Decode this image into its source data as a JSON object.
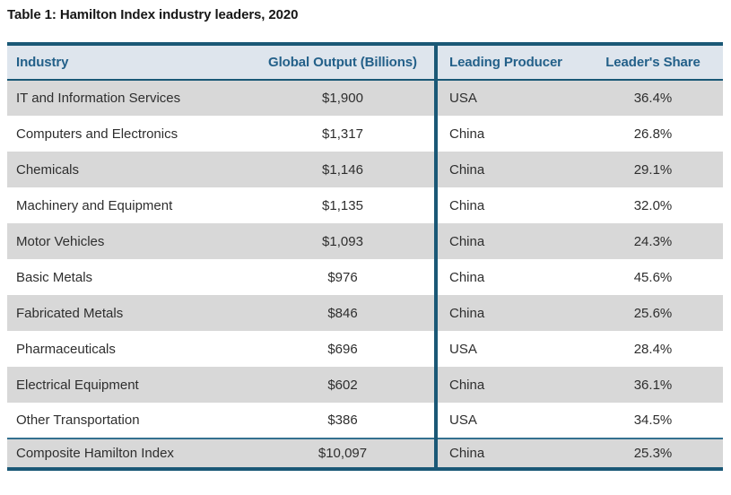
{
  "title": "Table 1: Hamilton Index industry leaders, 2020",
  "table": {
    "headers": {
      "industry": "Industry",
      "output": "Global Output (Billions)",
      "producer": "Leading Producer",
      "share": "Leader's Share"
    },
    "rows": [
      {
        "industry": "IT and Information Services",
        "output": "$1,900",
        "producer": "USA",
        "share": "36.4%"
      },
      {
        "industry": "Computers and Electronics",
        "output": "$1,317",
        "producer": "China",
        "share": "26.8%"
      },
      {
        "industry": "Chemicals",
        "output": "$1,146",
        "producer": "China",
        "share": "29.1%"
      },
      {
        "industry": "Machinery and Equipment",
        "output": "$1,135",
        "producer": "China",
        "share": "32.0%"
      },
      {
        "industry": "Motor Vehicles",
        "output": "$1,093",
        "producer": "China",
        "share": "24.3%"
      },
      {
        "industry": "Basic Metals",
        "output": "$976",
        "producer": "China",
        "share": "45.6%"
      },
      {
        "industry": "Fabricated Metals",
        "output": "$846",
        "producer": "China",
        "share": "25.6%"
      },
      {
        "industry": "Pharmaceuticals",
        "output": "$696",
        "producer": "USA",
        "share": "28.4%"
      },
      {
        "industry": "Electrical Equipment",
        "output": "$602",
        "producer": "China",
        "share": "36.1%"
      },
      {
        "industry": "Other Transportation",
        "output": "$386",
        "producer": "USA",
        "share": "34.5%"
      }
    ],
    "composite": {
      "industry": "Composite Hamilton Index",
      "output": "$10,097",
      "producer": "China",
      "share": "25.3%"
    }
  },
  "colors": {
    "border_teal": "#1a5876",
    "header_bg": "#dee5ed",
    "header_text": "#236089",
    "row_alt_bg": "#d8d8d8",
    "row_bg": "#ffffff",
    "body_text": "#2e2e2e",
    "composite_separator": "#34708f",
    "title_text": "#161616"
  },
  "chart_data": {
    "type": "table",
    "title": "Table 1: Hamilton Index industry leaders, 2020",
    "columns": [
      "Industry",
      "Global Output (Billions)",
      "Leading Producer",
      "Leader's Share"
    ],
    "rows": [
      [
        "IT and Information Services",
        "$1,900",
        "USA",
        "36.4%"
      ],
      [
        "Computers and Electronics",
        "$1,317",
        "China",
        "26.8%"
      ],
      [
        "Chemicals",
        "$1,146",
        "China",
        "29.1%"
      ],
      [
        "Machinery and Equipment",
        "$1,135",
        "China",
        "32.0%"
      ],
      [
        "Motor Vehicles",
        "$1,093",
        "China",
        "24.3%"
      ],
      [
        "Basic Metals",
        "$976",
        "China",
        "45.6%"
      ],
      [
        "Fabricated Metals",
        "$846",
        "China",
        "25.6%"
      ],
      [
        "Pharmaceuticals",
        "$696",
        "USA",
        "28.4%"
      ],
      [
        "Electrical Equipment",
        "$602",
        "China",
        "36.1%"
      ],
      [
        "Other Transportation",
        "$386",
        "USA",
        "34.5%"
      ],
      [
        "Composite Hamilton Index",
        "$10,097",
        "China",
        "25.3%"
      ]
    ]
  }
}
